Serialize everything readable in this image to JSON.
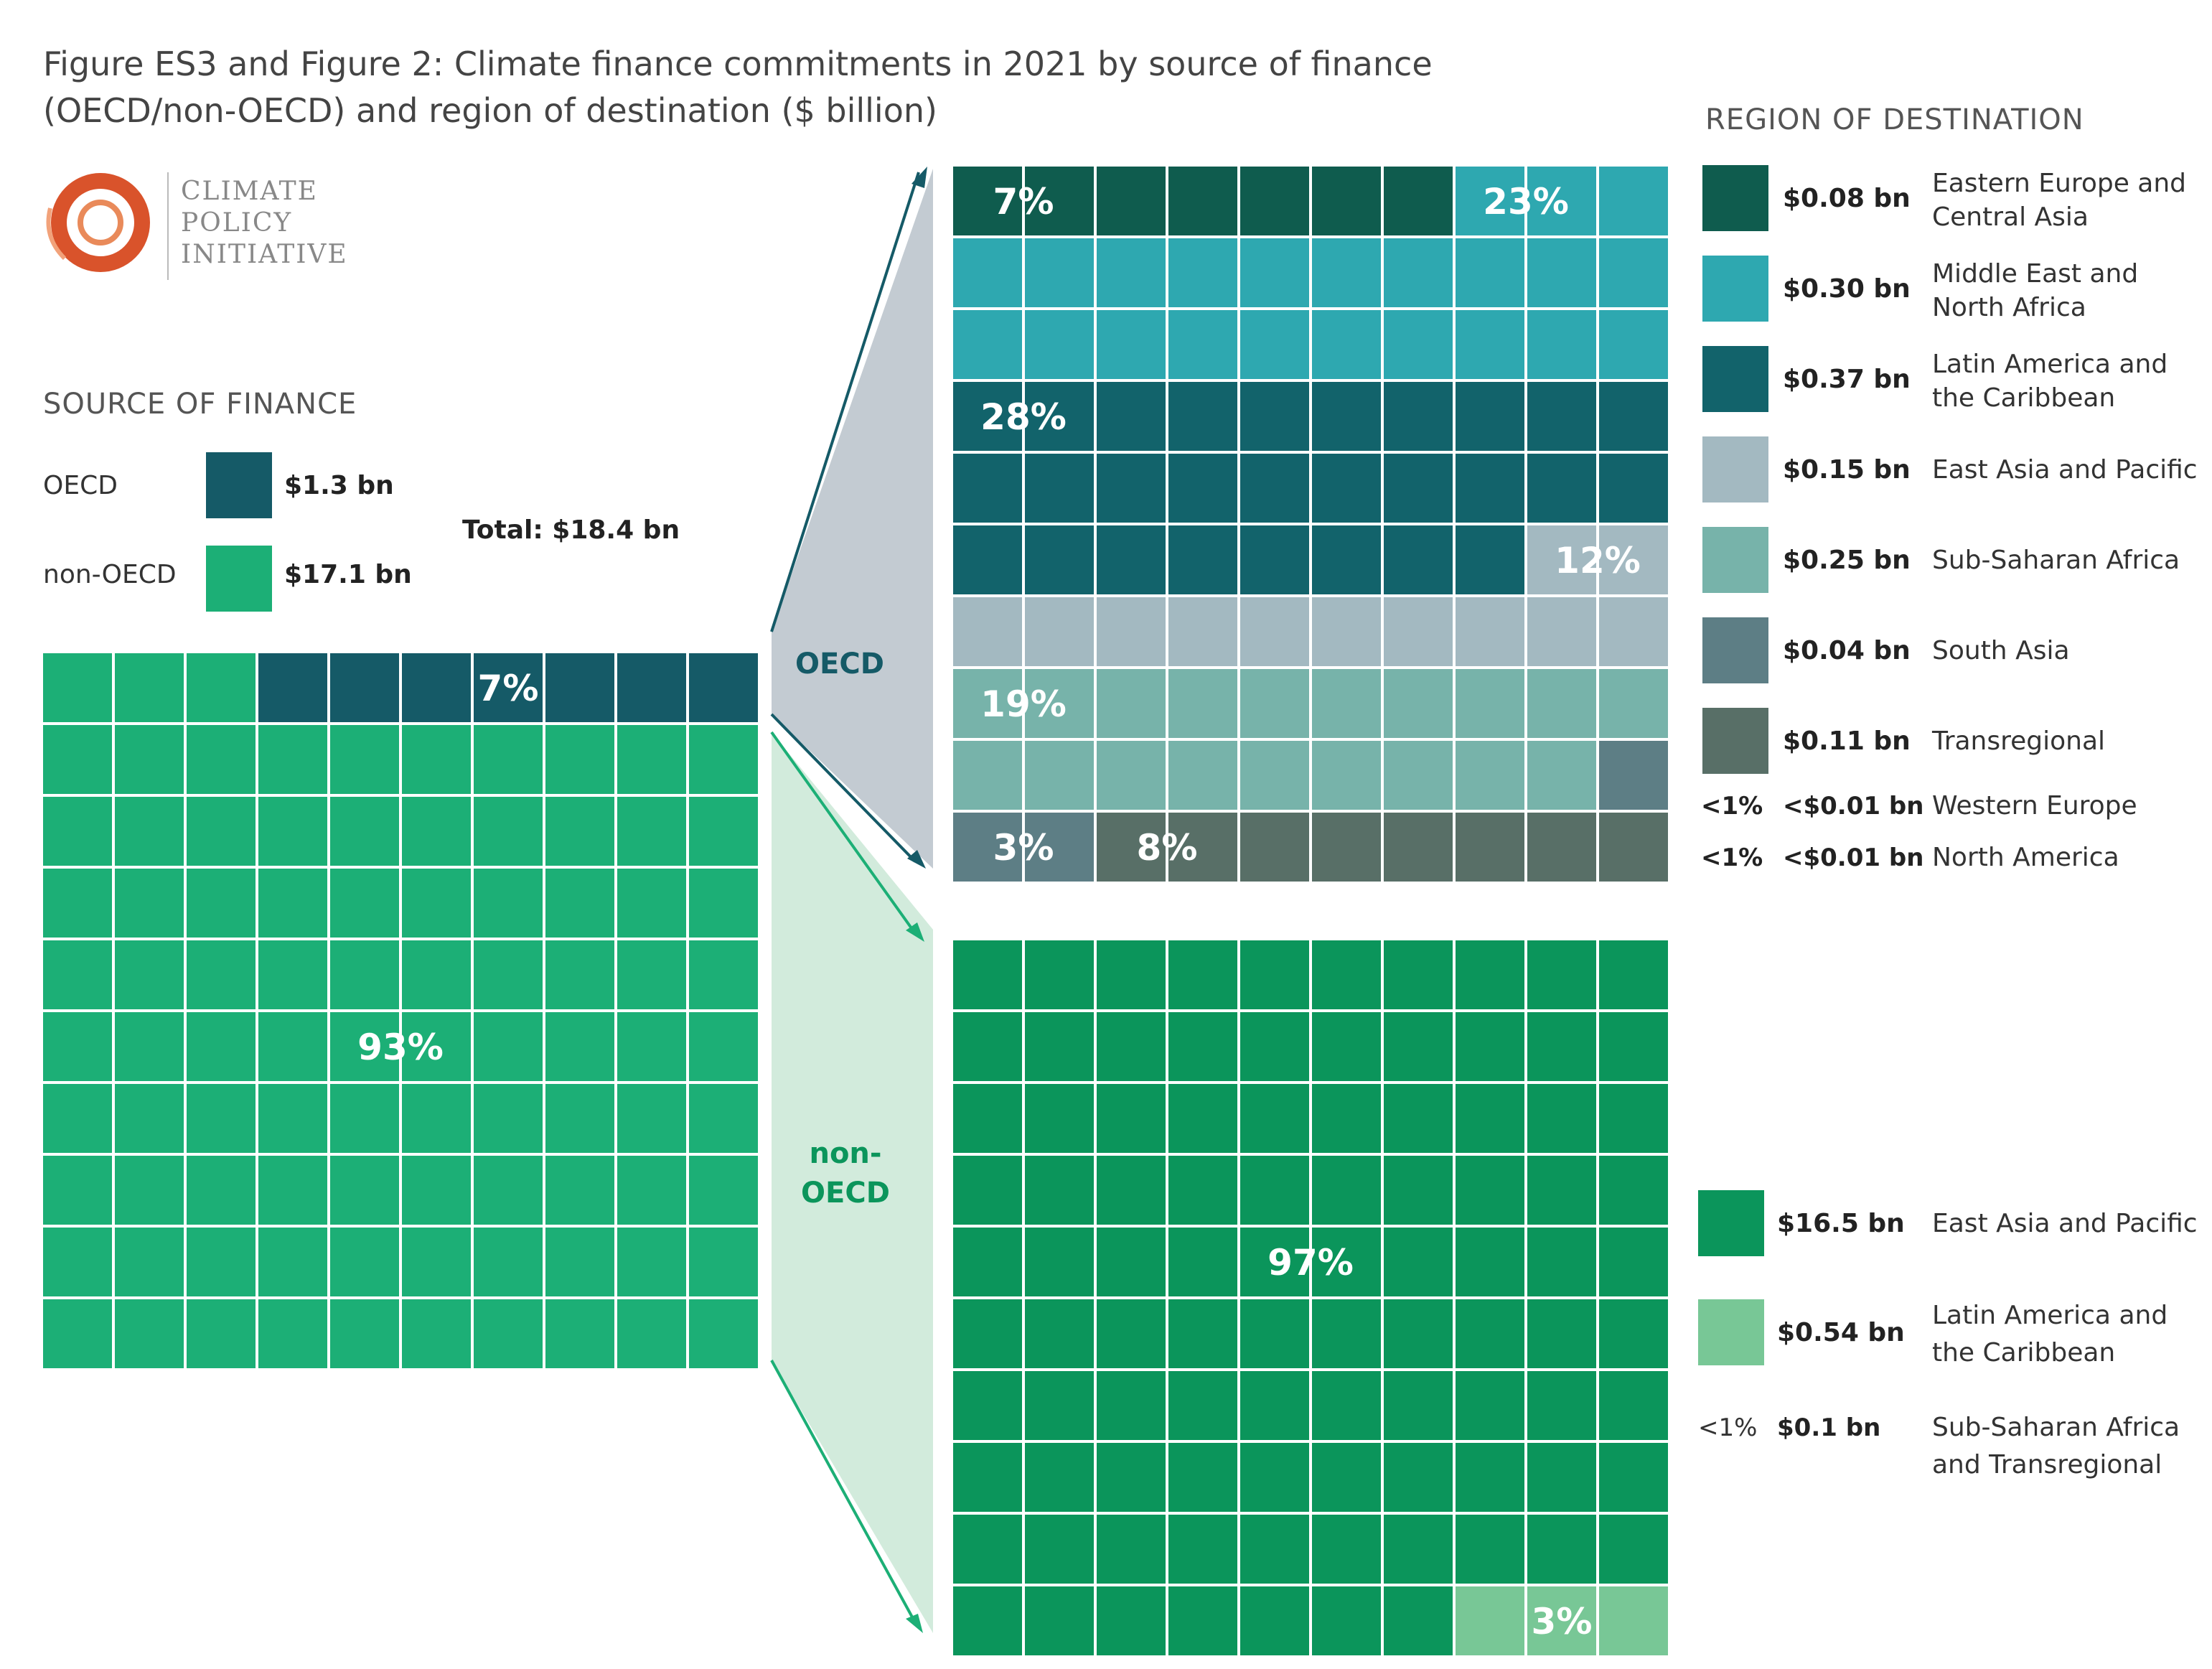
{
  "title_line1": "Figure ES3 and Figure 2: Climate finance commitments in 2021 by source of finance",
  "title_line2": "(OECD/non-OECD) and region of destination ($ billion)",
  "logo": {
    "line1": "CLIMATE",
    "line2": "POLICY",
    "line3": "INITIATIVE",
    "color": "#d9532b"
  },
  "source": {
    "heading": "SOURCE OF FINANCE",
    "total": "Total: $18.4 bn",
    "items": [
      {
        "label": "OECD",
        "value": "$1.3 bn",
        "color": "#155a67"
      },
      {
        "label": "non-OECD",
        "value": "$17.1 bn",
        "color": "#1caf76"
      }
    ]
  },
  "branch_labels": {
    "oecd": "OECD",
    "non_oecd_1": "non-",
    "non_oecd_2": "OECD"
  },
  "region_heading": "REGION OF DESTINATION",
  "oecd_legend": [
    {
      "value": "$0.08 bn",
      "line1": "Eastern Europe and",
      "line2": "Central Asia",
      "color": "#0f5c4e"
    },
    {
      "value": "$0.30 bn",
      "line1": "Middle East and",
      "line2": "North Africa",
      "color": "#2ea8b0"
    },
    {
      "value": "$0.37 bn",
      "line1": "Latin America and",
      "line2": "the Caribbean",
      "color": "#12636b"
    },
    {
      "value": "$0.15 bn",
      "line1": "East Asia and Pacific",
      "line2": "",
      "color": "#a3b9c1"
    },
    {
      "value": "$0.25 bn",
      "line1": "Sub-Saharan Africa",
      "line2": "",
      "color": "#77b3aa"
    },
    {
      "value": "$0.04 bn",
      "line1": "South Asia",
      "line2": "",
      "color": "#5d7e85"
    },
    {
      "value": "$0.11 bn",
      "line1": "Transregional",
      "line2": "",
      "color": "#586f67"
    }
  ],
  "oecd_small": [
    {
      "pct": "<1%",
      "value": "<$0.01 bn",
      "label": "Western Europe"
    },
    {
      "pct": "<1%",
      "value": "<$0.01 bn",
      "label": "North America"
    }
  ],
  "nonoecd_legend": [
    {
      "value": "$16.5 bn",
      "line1": "East Asia and Pacific",
      "line2": "",
      "color": "#0b955b"
    },
    {
      "value": "$0.54 bn",
      "line1": "Latin America and",
      "line2": "the Caribbean",
      "color": "#78c796"
    }
  ],
  "nonoecd_small": {
    "pct": "<1%",
    "value": "$0.1 bn",
    "line1": "Sub-Saharan Africa",
    "line2": "and Transregional"
  },
  "chart_data": [
    {
      "type": "waffle",
      "name": "Source of finance",
      "total": 18.4,
      "series": [
        {
          "name": "OECD",
          "value": 1.3,
          "squares": 7,
          "label": "7%",
          "color": "#155a67"
        },
        {
          "name": "non-OECD",
          "value": 17.1,
          "squares": 93,
          "label": "93%",
          "color": "#1caf76"
        }
      ]
    },
    {
      "type": "waffle",
      "name": "OECD by region of destination",
      "series": [
        {
          "name": "Eastern Europe and Central Asia",
          "value": 0.08,
          "squares": 7,
          "label": "7%",
          "color": "#0f5c4e"
        },
        {
          "name": "Middle East and North Africa",
          "value": 0.3,
          "squares": 23,
          "label": "23%",
          "color": "#2ea8b0"
        },
        {
          "name": "Latin America and the Caribbean",
          "value": 0.37,
          "squares": 28,
          "label": "28%",
          "color": "#12636b"
        },
        {
          "name": "East Asia and Pacific",
          "value": 0.15,
          "squares": 12,
          "label": "12%",
          "color": "#a3b9c1"
        },
        {
          "name": "Sub-Saharan Africa",
          "value": 0.25,
          "squares": 19,
          "label": "19%",
          "color": "#77b3aa"
        },
        {
          "name": "South Asia",
          "value": 0.04,
          "squares": 3,
          "label": "3%",
          "color": "#5d7e85"
        },
        {
          "name": "Transregional",
          "value": 0.11,
          "squares": 8,
          "label": "8%",
          "color": "#586f67"
        }
      ]
    },
    {
      "type": "waffle",
      "name": "non-OECD by region of destination",
      "series": [
        {
          "name": "East Asia and Pacific",
          "value": 16.5,
          "squares": 97,
          "label": "97%",
          "color": "#0b955b"
        },
        {
          "name": "Latin America and the Caribbean",
          "value": 0.54,
          "squares": 3,
          "label": "3%",
          "color": "#78c796"
        }
      ]
    }
  ]
}
